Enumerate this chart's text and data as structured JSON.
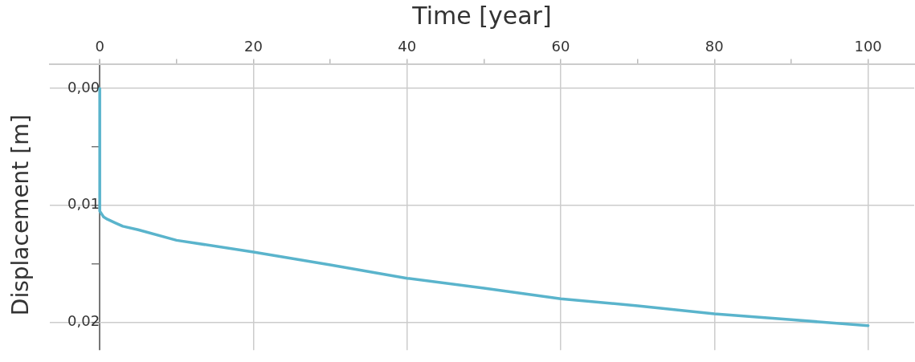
{
  "chart_data": {
    "type": "line",
    "xlabel": "Time [year]",
    "ylabel": "Displacement [m]",
    "x": [
      0,
      0,
      0.2,
      0.5,
      1,
      2,
      3,
      5,
      10,
      20,
      30,
      40,
      50,
      60,
      70,
      80,
      90,
      100
    ],
    "series": [
      {
        "color": "#5ab4cc",
        "values": [
          0,
          0.0105,
          0.0107,
          0.011,
          0.0112,
          0.0115,
          0.0118,
          0.0121,
          0.013,
          0.014,
          0.0151,
          0.01625,
          0.0171,
          0.018,
          0.0186,
          0.0193,
          0.0198,
          0.0203
        ]
      }
    ],
    "xlim": [
      -6.5,
      106
    ],
    "xticks": [
      0,
      {
        "value": 10,
        "label": null
      },
      20,
      {
        "value": 30,
        "label": null
      },
      40,
      {
        "value": 50,
        "label": null
      },
      60,
      {
        "value": 70,
        "label": null
      },
      80,
      {
        "value": 90,
        "label": null
      },
      100
    ],
    "ylim": [
      0.0224,
      -0.0021
    ],
    "yticks": [
      {
        "value": 0,
        "label": "0,00"
      },
      {
        "value": 0.005,
        "label": null
      },
      {
        "value": 0.01,
        "label": "0,01"
      },
      {
        "value": 0.015,
        "label": null
      },
      {
        "value": 0.02,
        "label": "0,02"
      }
    ],
    "grid": true,
    "marker": "none",
    "line_style": "solid"
  }
}
